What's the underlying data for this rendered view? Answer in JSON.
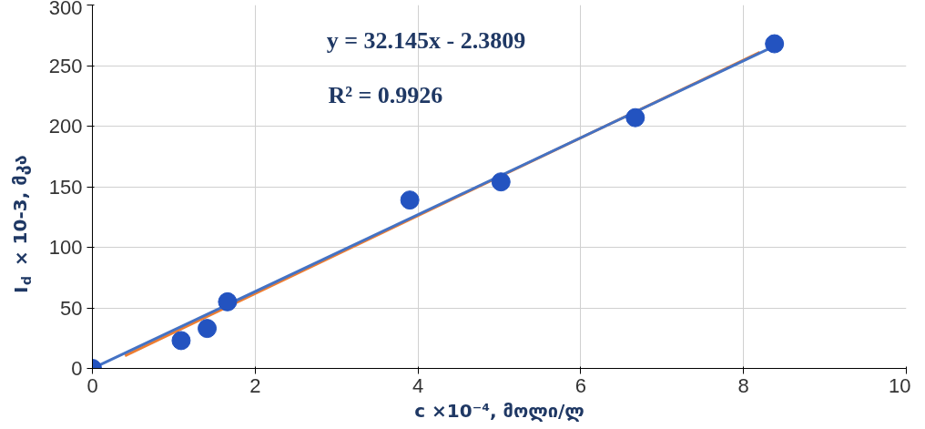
{
  "chart_data": {
    "type": "scatter",
    "xlabel": "c ×10⁻⁴, მოლი/ლ",
    "ylabel": "I$_{d}$ × 10-3, მკა",
    "xlim": [
      0,
      10
    ],
    "ylim": [
      0,
      300
    ],
    "xticks": [
      0,
      2,
      4,
      6,
      8,
      10
    ],
    "yticks": [
      0,
      50,
      100,
      150,
      200,
      250,
      300
    ],
    "grid": true,
    "annotations": [
      "y = 32.145x - 2.3809",
      "R² = 0.9926"
    ],
    "series": [
      {
        "type": "line",
        "color": "#ed7d31",
        "x": [
          0.4,
          8.2
        ],
        "values": [
          10.5,
          261
        ]
      },
      {
        "type": "line",
        "color": "#4472c4",
        "x": [
          0,
          8.38
        ],
        "values": [
          0,
          266
        ]
      },
      {
        "marker": "circle",
        "color": "#2353c0",
        "x": [
          0,
          1.09,
          1.41,
          1.66,
          3.9,
          5.02,
          6.67,
          8.38
        ],
        "values": [
          0,
          23,
          33,
          55,
          139,
          154,
          207,
          268
        ]
      }
    ]
  }
}
